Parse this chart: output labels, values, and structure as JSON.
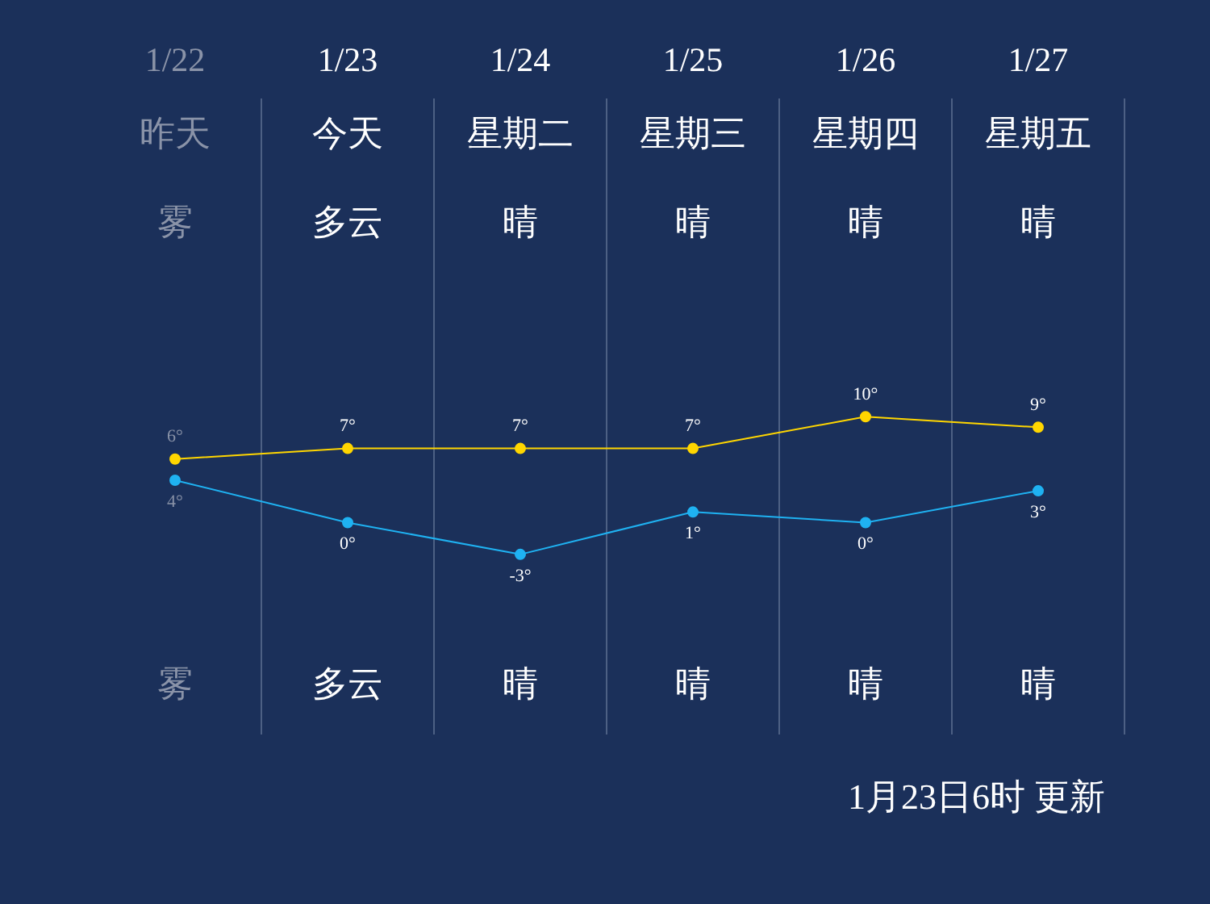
{
  "chart_data": {
    "type": "line",
    "categories": [
      "1/22",
      "1/23",
      "1/24",
      "1/25",
      "1/26",
      "1/27"
    ],
    "series": [
      {
        "color": "#ffd600",
        "values": [
          6,
          7,
          7,
          7,
          10,
          9
        ],
        "value_labels": [
          "6°",
          "7°",
          "7°",
          "7°",
          "10°",
          "9°"
        ]
      },
      {
        "color": "#1fb2f2",
        "values": [
          4,
          0,
          -3,
          1,
          0,
          3
        ],
        "value_labels": [
          "4°",
          "0°",
          "-3°",
          "1°",
          "0°",
          "3°"
        ]
      }
    ],
    "grid": "x",
    "legend": false,
    "marker": "circle",
    "line_style": "solid",
    "annotations": [
      "昨天",
      "今天",
      "星期二",
      "星期三",
      "星期四",
      "星期五",
      "雾",
      "多云",
      "晴",
      "晴",
      "晴",
      "晴",
      "雾",
      "多云",
      "晴",
      "晴",
      "晴",
      "晴",
      "1月23日6时 更新"
    ]
  }
}
